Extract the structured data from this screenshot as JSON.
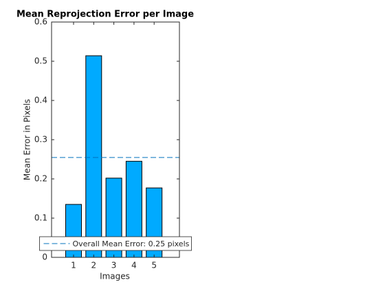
{
  "chart_data": {
    "type": "bar",
    "title": "Mean Reprojection Error per Image",
    "x_label": "Images",
    "y_label": "Mean Error in Pixels",
    "categories": [
      "1",
      "2",
      "3",
      "4",
      "5"
    ],
    "values": [
      0.135,
      0.514,
      0.202,
      0.245,
      0.177
    ],
    "color": "#00aaff",
    "ylim": [
      0,
      0.6
    ],
    "yticks": [
      0,
      0.1,
      0.2,
      0.3,
      0.4,
      0.5,
      0.6
    ],
    "reference_line": {
      "name": "Overall Mean Error: 0.25 pixels",
      "value": 0.2546,
      "color": "#0072bd",
      "dash": true
    },
    "legend_position": "south"
  }
}
